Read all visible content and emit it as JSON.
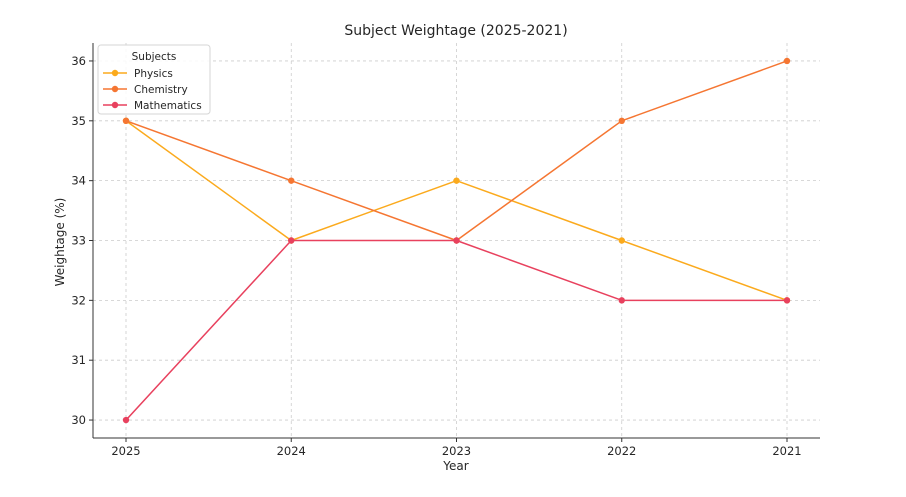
{
  "chart_data": {
    "type": "line",
    "title": "Subject Weightage (2025-2021)",
    "xlabel": "Year",
    "ylabel": "Weightage (%)",
    "categories": [
      "2025",
      "2024",
      "2023",
      "2022",
      "2021"
    ],
    "ylim": [
      29.7,
      36.3
    ],
    "yticks": [
      30,
      31,
      32,
      33,
      34,
      35,
      36
    ],
    "grid": true,
    "legend": {
      "title": "Subjects",
      "placement": "top-left"
    },
    "series": [
      {
        "name": "Physics",
        "color": "#fbaa1d",
        "values": [
          35,
          33,
          34,
          33,
          32
        ]
      },
      {
        "name": "Chemistry",
        "color": "#f57632",
        "values": [
          35,
          34,
          33,
          35,
          36
        ]
      },
      {
        "name": "Mathematics",
        "color": "#e8415e",
        "values": [
          30,
          33,
          33,
          32,
          32
        ]
      }
    ]
  }
}
